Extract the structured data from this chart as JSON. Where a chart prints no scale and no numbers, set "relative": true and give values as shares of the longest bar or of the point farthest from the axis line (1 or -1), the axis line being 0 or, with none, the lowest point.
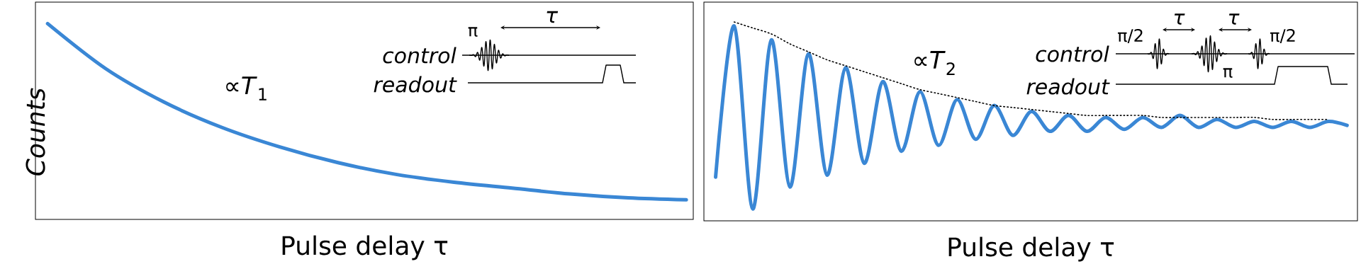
{
  "chart_data": [
    {
      "type": "line",
      "relative": true,
      "xlabel": "Pulse delay τ",
      "ylabel": "Counts",
      "categories": [
        null,
        null,
        null,
        null,
        null,
        null,
        null,
        null,
        null,
        null,
        null,
        null
      ],
      "series": [
        {
          "color": "#3a87d5",
          "line_style": "solid",
          "values": [
            1,
            0.77,
            0.6,
            0.47,
            0.37,
            0.29,
            0.23,
            0.19,
            0.16,
            0.13,
            0.11,
            0.1
          ]
        }
      ],
      "annotations": [
        "∝*T*$_{1}$",
        "π",
        "τ",
        "control",
        "readout"
      ]
    },
    {
      "type": "line",
      "relative": true,
      "xlabel": "Pulse delay τ",
      "categories": [
        null,
        null,
        null,
        null,
        null,
        null,
        null,
        null,
        null,
        null,
        null,
        null,
        null,
        null,
        null,
        null,
        null,
        null,
        null,
        null,
        null,
        null,
        null,
        null,
        null,
        null,
        null,
        null,
        null,
        null,
        null,
        null,
        null,
        null,
        null
      ],
      "series": [
        {
          "color": "#3a87d5",
          "line_style": "solid",
          "values": [
            0.22,
            0.98,
            0.06,
            0.91,
            0.17,
            0.84,
            0.23,
            0.77,
            0.29,
            0.7,
            0.35,
            0.65,
            0.38,
            0.61,
            0.41,
            0.58,
            0.43,
            0.55,
            0.45,
            0.53,
            0.45,
            0.52,
            0.46,
            0.52,
            0.47,
            0.53,
            0.47,
            0.51,
            0.47,
            0.5,
            0.47,
            0.5,
            0.47,
            0.5,
            0.48
          ]
        },
        {
          "color": "#000000",
          "line_style": "dotted",
          "values": [
            null,
            1,
            0.97,
            0.94,
            0.89,
            0.85,
            0.81,
            0.78,
            0.75,
            0.72,
            0.69,
            0.66,
            0.64,
            0.62,
            0.6,
            0.58,
            0.57,
            0.56,
            0.55,
            0.54,
            0.53,
            0.53,
            0.53,
            0.53,
            0.52,
            0.52,
            0.52,
            0.52,
            0.52,
            0.52,
            0.51,
            0.51,
            0.51,
            0.51,
            null
          ]
        }
      ],
      "annotations": [
        "∝*T*$_{2}$",
        "π/2",
        "τ",
        "τ",
        "π/2",
        "control",
        "readout",
        "π"
      ]
    }
  ]
}
